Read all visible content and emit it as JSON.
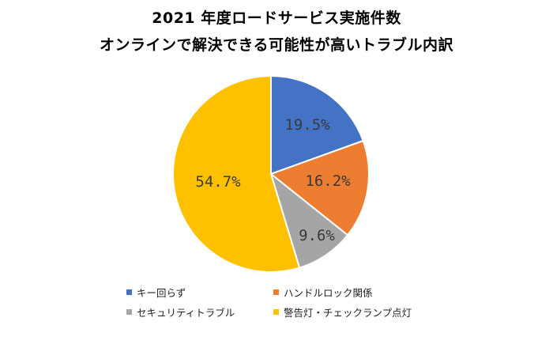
{
  "chart_data": {
    "type": "pie",
    "title_line1": "2021 年度ロードサービス実施件数",
    "title_line2": "オンラインで解決できる可能性が高いトラブル内訳",
    "slices": [
      {
        "name": "キー回らず",
        "value": 19.5,
        "label": "19.5%",
        "color": "#4472C4"
      },
      {
        "name": "ハンドルロック関係",
        "value": 16.2,
        "label": "16.2%",
        "color": "#ED7D31"
      },
      {
        "name": "セキュリティトラブル",
        "value": 9.6,
        "label": "9.6%",
        "color": "#A5A5A5"
      },
      {
        "name": "警告灯・チェックランプ点灯",
        "value": 54.7,
        "label": "54.7%",
        "color": "#FFC000"
      }
    ],
    "start": "12 o'clock",
    "direction": "clockwise",
    "legend_position": "bottom"
  }
}
